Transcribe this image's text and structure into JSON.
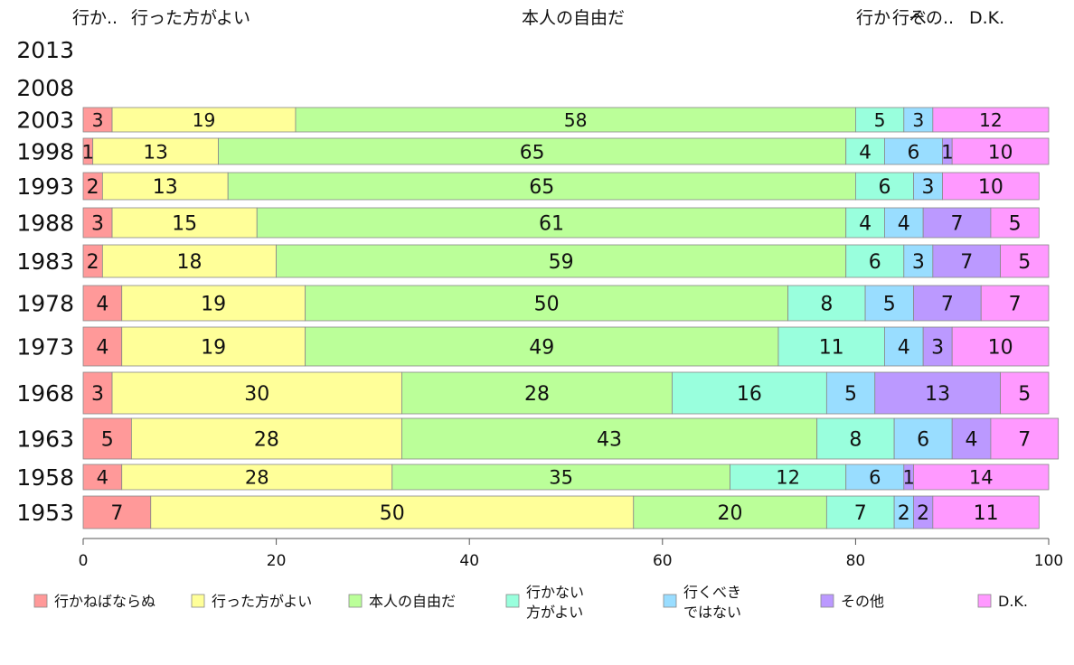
{
  "chart_data": {
    "type": "bar",
    "orientation": "horizontal",
    "stacked": true,
    "categories": [
      "2013",
      "2008",
      "2003",
      "1998",
      "1993",
      "1988",
      "1983",
      "1978",
      "1973",
      "1968",
      "1963",
      "1958",
      "1953"
    ],
    "top_labels": [
      "行か..",
      "行った方がよい",
      "本人の自由だ",
      "行か",
      "行べ",
      "その..",
      "D.K."
    ],
    "series": [
      {
        "name": "行かねばならぬ",
        "color": "#ff9999",
        "values": [
          null,
          null,
          3,
          1,
          2,
          3,
          2,
          4,
          4,
          3,
          5,
          4,
          7
        ]
      },
      {
        "name": "行った方がよい",
        "color": "#ffff99",
        "values": [
          null,
          null,
          19,
          13,
          13,
          15,
          18,
          19,
          19,
          30,
          28,
          28,
          50
        ]
      },
      {
        "name": "本人の自由だ",
        "color": "#bbff99",
        "values": [
          null,
          null,
          58,
          65,
          65,
          61,
          59,
          50,
          49,
          28,
          43,
          35,
          20
        ]
      },
      {
        "name": "行かない\n方がよい",
        "color": "#99ffdd",
        "values": [
          null,
          null,
          5,
          4,
          6,
          4,
          6,
          8,
          11,
          16,
          8,
          12,
          7
        ]
      },
      {
        "name": "行くべき\nではない",
        "color": "#99ddff",
        "values": [
          null,
          null,
          3,
          6,
          3,
          4,
          3,
          5,
          4,
          5,
          6,
          6,
          2
        ]
      },
      {
        "name": "その他",
        "color": "#bb99ff",
        "values": [
          null,
          null,
          0,
          1,
          0,
          7,
          7,
          7,
          3,
          13,
          4,
          1,
          2
        ]
      },
      {
        "name": "D.K.",
        "color": "#ff99ff",
        "values": [
          null,
          null,
          12,
          10,
          10,
          5,
          5,
          7,
          10,
          5,
          7,
          14,
          11
        ]
      }
    ],
    "xlim": [
      0,
      100
    ],
    "xticks": [
      0,
      20,
      40,
      60,
      80,
      100
    ],
    "legend_position": "bottom",
    "grid": false
  }
}
